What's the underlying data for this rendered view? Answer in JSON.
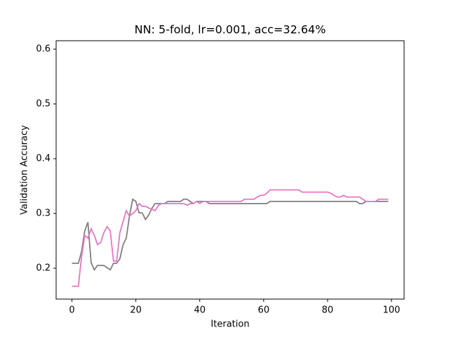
{
  "chart_data": {
    "type": "line",
    "title": "NN: 5-fold, lr=0.001, acc=32.64%",
    "xlabel": "Iteration",
    "ylabel": "Validation Accuracy",
    "xlim": [
      -4.95,
      103.95
    ],
    "ylim": [
      0.1436,
      0.6154
    ],
    "xticks": [
      0,
      20,
      40,
      60,
      80,
      100
    ],
    "yticks": [
      0.2,
      0.3,
      0.4,
      0.5,
      0.6
    ],
    "series": [
      {
        "color": "#7f7f7f",
        "values": [
          0.209,
          0.209,
          0.209,
          0.23,
          0.268,
          0.284,
          0.21,
          0.197,
          0.205,
          0.205,
          0.205,
          0.201,
          0.197,
          0.209,
          0.209,
          0.217,
          0.243,
          0.255,
          0.295,
          0.326,
          0.322,
          0.301,
          0.301,
          0.289,
          0.297,
          0.309,
          0.318,
          0.318,
          0.318,
          0.318,
          0.322,
          0.322,
          0.322,
          0.322,
          0.322,
          0.326,
          0.326,
          0.322,
          0.318,
          0.322,
          0.322,
          0.322,
          0.322,
          0.318,
          0.318,
          0.318,
          0.318,
          0.318,
          0.318,
          0.318,
          0.318,
          0.318,
          0.318,
          0.318,
          0.318,
          0.318,
          0.318,
          0.318,
          0.318,
          0.318,
          0.318,
          0.318,
          0.322,
          0.322,
          0.322,
          0.322,
          0.322,
          0.322,
          0.322,
          0.322,
          0.322,
          0.322,
          0.322,
          0.322,
          0.322,
          0.322,
          0.322,
          0.322,
          0.322,
          0.322,
          0.322,
          0.322,
          0.322,
          0.322,
          0.322,
          0.322,
          0.322,
          0.322,
          0.322,
          0.322,
          0.318,
          0.318,
          0.322,
          0.322,
          0.322,
          0.322,
          0.322,
          0.322,
          0.322,
          0.322
        ]
      },
      {
        "color": "#e377c2",
        "values": [
          0.167,
          0.167,
          0.167,
          0.22,
          0.26,
          0.255,
          0.272,
          0.26,
          0.243,
          0.247,
          0.265,
          0.276,
          0.268,
          0.213,
          0.213,
          0.265,
          0.285,
          0.305,
          0.295,
          0.3,
          0.305,
          0.318,
          0.313,
          0.313,
          0.31,
          0.308,
          0.305,
          0.314,
          0.318,
          0.318,
          0.318,
          0.318,
          0.318,
          0.318,
          0.318,
          0.318,
          0.315,
          0.318,
          0.318,
          0.322,
          0.318,
          0.322,
          0.322,
          0.322,
          0.322,
          0.322,
          0.322,
          0.322,
          0.322,
          0.322,
          0.322,
          0.322,
          0.322,
          0.322,
          0.326,
          0.326,
          0.326,
          0.326,
          0.33,
          0.333,
          0.333,
          0.337,
          0.343,
          0.343,
          0.343,
          0.343,
          0.343,
          0.343,
          0.343,
          0.343,
          0.343,
          0.343,
          0.339,
          0.339,
          0.339,
          0.339,
          0.339,
          0.339,
          0.339,
          0.339,
          0.339,
          0.337,
          0.333,
          0.33,
          0.33,
          0.333,
          0.33,
          0.33,
          0.33,
          0.33,
          0.33,
          0.326,
          0.322,
          0.322,
          0.322,
          0.322,
          0.326,
          0.326,
          0.326,
          0.326
        ]
      }
    ]
  }
}
